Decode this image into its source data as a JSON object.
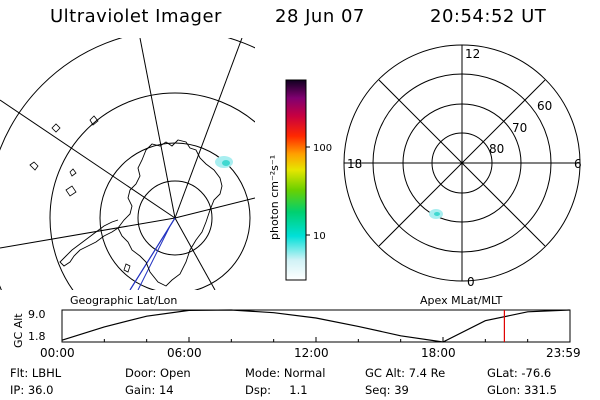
{
  "header": {
    "title": "Ultraviolet Imager",
    "date": "28 Jun 07",
    "time": "20:54:52 UT"
  },
  "colorbar": {
    "unit_label": "photon cm⁻²s⁻¹",
    "ticks": [
      "100",
      "10"
    ]
  },
  "geo_map": {
    "label": "Geographic Lat/Lon"
  },
  "polar_plot": {
    "label": "Apex MLat/MLT",
    "mlt_labels": [
      "12",
      "18",
      "6",
      "0"
    ],
    "mlat_labels": [
      "60",
      "70",
      "80"
    ]
  },
  "altitude_plot": {
    "axis_title": "GC Alt",
    "y_ticks": [
      "9.0",
      "1.8"
    ],
    "x_ticks": [
      "00:00",
      "06:00",
      "12:00",
      "18:00",
      "23:59"
    ],
    "series_color": "#000000",
    "marker_color": "#e00000",
    "marker_hour": 20.9,
    "chart_data": {
      "type": "line",
      "x": [
        0,
        2,
        4,
        6,
        8,
        10,
        12,
        14,
        16,
        18,
        20,
        22,
        23.98
      ],
      "values": [
        2.2,
        5.2,
        7.6,
        8.9,
        9.0,
        8.4,
        7.2,
        5.3,
        3.2,
        1.8,
        6.6,
        8.6,
        9.0
      ],
      "ylim": [
        1.8,
        9.0
      ],
      "xlim": [
        0,
        24
      ]
    }
  },
  "status": {
    "filter": "Flt: LBHL",
    "ip": "IP: 36.0",
    "door": "Door: Open",
    "gain": "Gain: 14",
    "mode": "Mode: Normal",
    "dsp": "Dsp:     1.1",
    "gc_alt": "GC Alt: 7.4 Re",
    "seq": "Seq: 39",
    "glat": "GLat: -76.6",
    "glon": "GLon: 331.5"
  }
}
